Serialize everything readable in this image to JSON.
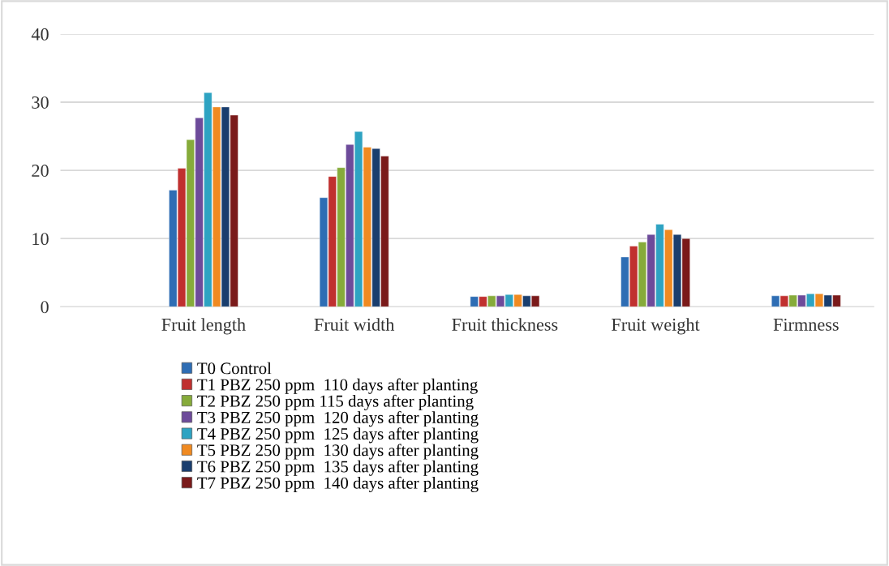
{
  "chart_data": {
    "type": "bar",
    "categories": [
      "Fruit length",
      "Fruit width",
      "Fruit thickness",
      "Fruit weight",
      "Firmness"
    ],
    "series": [
      {
        "name": "T0 Control",
        "color": "#2e6db4",
        "values": [
          17.1,
          16.0,
          1.5,
          7.3,
          1.6
        ]
      },
      {
        "name": "T1 PBZ 250 ppm  110 days after planting",
        "color": "#c0302f",
        "values": [
          20.3,
          19.1,
          1.5,
          8.9,
          1.6
        ]
      },
      {
        "name": "T2 PBZ 250 ppm 115 days after planting",
        "color": "#86ab3a",
        "values": [
          24.5,
          20.4,
          1.6,
          9.5,
          1.7
        ]
      },
      {
        "name": "T3 PBZ 250 ppm  120 days after planting",
        "color": "#6d4b9a",
        "values": [
          27.7,
          23.8,
          1.6,
          10.6,
          1.7
        ]
      },
      {
        "name": "T4 PBZ 250 ppm  125 days after planting",
        "color": "#2ea3c2",
        "values": [
          31.4,
          25.7,
          1.8,
          12.1,
          1.9
        ]
      },
      {
        "name": "T5 PBZ 250 ppm  130 days after planting",
        "color": "#f08a21",
        "values": [
          29.3,
          23.4,
          1.8,
          11.3,
          1.9
        ]
      },
      {
        "name": "T6 PBZ 250 ppm  135 days after planting",
        "color": "#1a3e6e",
        "values": [
          29.3,
          23.2,
          1.6,
          10.6,
          1.7
        ]
      },
      {
        "name": "T7 PBZ 250 ppm  140 days after planting",
        "color": "#7a1a1a",
        "values": [
          28.1,
          22.1,
          1.6,
          10.0,
          1.7
        ]
      }
    ],
    "ylim": [
      0,
      40
    ],
    "yticks": [
      0,
      10,
      20,
      30,
      40
    ],
    "grid": "y",
    "legend": "bottom"
  }
}
